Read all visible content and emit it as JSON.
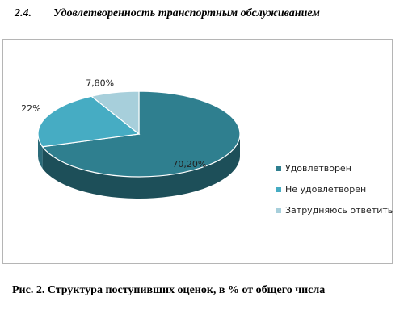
{
  "section": {
    "number": "2.4.",
    "title": "Удовлетворенность транспортным обслуживанием"
  },
  "chart_data": {
    "type": "pie",
    "title": "",
    "slices": [
      {
        "name": "Удовлетворен",
        "value": 70.2,
        "label": "70,20%",
        "color": "#2f7f8f"
      },
      {
        "name": "Не удовлетворен",
        "value": 22,
        "label": "22%",
        "color": "#46acc3"
      },
      {
        "name": "Затрудняюсь ответить",
        "value": 7.8,
        "label": "7,80%",
        "color": "#a7cfdb"
      }
    ],
    "legend_placement": "right",
    "style": "3d"
  },
  "caption": "Рис. 2. Структура поступивших оценок, в % от общего числа"
}
